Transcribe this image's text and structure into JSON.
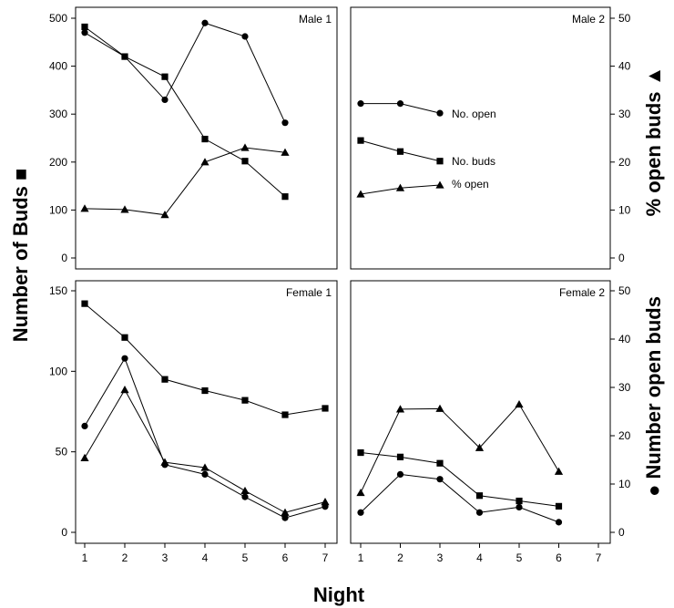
{
  "figure": {
    "xlabel": "Night",
    "ylabel_left": "Number of Buds ■",
    "ylabel_right_top": "% open buds ▲",
    "ylabel_right_bottom": "● Number open buds"
  },
  "chart_data": [
    {
      "type": "line",
      "title": "Male 1",
      "x": [
        1,
        2,
        3,
        4,
        5,
        6
      ],
      "xlim": [
        1,
        7
      ],
      "ylim_left": [
        0,
        500
      ],
      "yticks_left": [
        0,
        100,
        200,
        300,
        400,
        500
      ],
      "ylim_right": [
        0,
        50
      ],
      "yticks_right": [
        0,
        10,
        20,
        30,
        40,
        50
      ],
      "series": [
        {
          "name": "No. buds",
          "marker": "square",
          "axis": "left",
          "values": [
            482,
            420,
            378,
            248,
            202,
            128
          ]
        },
        {
          "name": "No. open",
          "marker": "circle",
          "axis": "left",
          "values": [
            470,
            420,
            330,
            490,
            462,
            282
          ]
        },
        {
          "name": "% open",
          "marker": "triangle",
          "axis": "right",
          "values": [
            10.3,
            10.1,
            9.0,
            20.0,
            23.0,
            22.0
          ]
        }
      ]
    },
    {
      "type": "line",
      "title": "Male 2",
      "x": [
        1,
        2,
        3
      ],
      "xlim": [
        1,
        7
      ],
      "ylim_left": [
        0,
        500
      ],
      "yticks_left": [
        0,
        100,
        200,
        300,
        400,
        500
      ],
      "ylim_right": [
        0,
        50
      ],
      "yticks_right": [
        0,
        10,
        20,
        30,
        40,
        50
      ],
      "annotations": [
        "No. open",
        "No. buds",
        "% open"
      ],
      "series": [
        {
          "name": "No. buds",
          "marker": "square",
          "axis": "left",
          "values": [
            245,
            222,
            202
          ]
        },
        {
          "name": "No. open",
          "marker": "circle",
          "axis": "left",
          "values": [
            322,
            322,
            302
          ]
        },
        {
          "name": "% open",
          "marker": "triangle",
          "axis": "right",
          "values": [
            13.3,
            14.6,
            15.2
          ]
        }
      ]
    },
    {
      "type": "line",
      "title": "Female 1",
      "x": [
        1,
        2,
        3,
        4,
        5,
        6,
        7
      ],
      "xlim": [
        1,
        7
      ],
      "xticks": [
        "1",
        "2",
        "3",
        "4",
        "5",
        "6",
        "7"
      ],
      "ylim_left": [
        0,
        150
      ],
      "yticks_left": [
        0,
        50,
        100,
        150
      ],
      "ylim_right": [
        0,
        50
      ],
      "yticks_right": [
        0,
        10,
        20,
        30,
        40,
        50
      ],
      "series": [
        {
          "name": "No. buds",
          "marker": "square",
          "axis": "left",
          "values": [
            142,
            121,
            95,
            88,
            82,
            73,
            77
          ]
        },
        {
          "name": "No. open",
          "marker": "circle",
          "axis": "left",
          "values": [
            66,
            108,
            42,
            36,
            22,
            9,
            16
          ]
        },
        {
          "name": "% open",
          "marker": "triangle",
          "axis": "right",
          "values": [
            15.4,
            29.5,
            14.5,
            13.4,
            8.6,
            4.1,
            6.3
          ]
        }
      ]
    },
    {
      "type": "line",
      "title": "Female 2",
      "x": [
        1,
        2,
        3,
        4,
        5,
        6
      ],
      "xlim": [
        1,
        7
      ],
      "xticks": [
        "1",
        "2",
        "3",
        "4",
        "5",
        "6",
        "7"
      ],
      "ylim_left": [
        0,
        150
      ],
      "yticks_left": [
        0,
        50,
        100,
        150
      ],
      "ylim_right": [
        0,
        50
      ],
      "yticks_right": [
        0,
        10,
        20,
        30,
        40,
        50
      ],
      "series": [
        {
          "name": "No. buds",
          "marker": "square",
          "axis": "right",
          "values": [
            16.5,
            15.6,
            14.3,
            7.6,
            6.5,
            5.4
          ]
        },
        {
          "name": "No. open",
          "marker": "circle",
          "axis": "right",
          "values": [
            4.1,
            12.0,
            11.0,
            4.1,
            5.2,
            2.1
          ]
        },
        {
          "name": "% open",
          "marker": "triangle",
          "axis": "right",
          "values": [
            8.2,
            25.5,
            25.6,
            17.5,
            26.5,
            12.6
          ]
        }
      ]
    }
  ]
}
